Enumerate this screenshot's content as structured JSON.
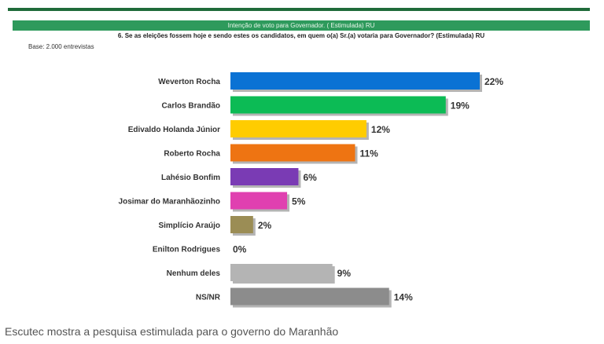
{
  "chart_data": {
    "type": "bar",
    "orientation": "horizontal",
    "title": "Intenção de voto para Governador. ( Estimulada) RU",
    "subtitle": "6. Se as eleições fossem hoje e sendo estes os candidatos, em quem o(a) Sr.(a) votaria para Governador? (Estimulada) RU",
    "note": "Base: 2.000 entrevistas",
    "categories": [
      "Weverton Rocha",
      "Carlos Brandão",
      "Edivaldo Holanda Júnior",
      "Roberto Rocha",
      "Lahésio Bonfim",
      "Josimar do Maranhãozinho",
      "Simplício Araújo",
      "Enilton Rodrigues",
      "Nenhum deles",
      "NS/NR"
    ],
    "values": [
      22,
      19,
      12,
      11,
      6,
      5,
      2,
      0,
      9,
      14
    ],
    "labels": [
      "22%",
      "19%",
      "12%",
      "11%",
      "6%",
      "5%",
      "2%",
      "0%",
      "9%",
      "14%"
    ],
    "colors": [
      "#0a72d4",
      "#0cbb55",
      "#ffcc00",
      "#ee7412",
      "#7a3bb4",
      "#e040b0",
      "#9b8d55",
      "#cccccc",
      "#b4b4b4",
      "#8c8c8c"
    ],
    "xlim": [
      0,
      22
    ],
    "grid": false,
    "legend": "none"
  },
  "caption": "Escutec mostra a pesquisa estimulada para o governo do Maranhão"
}
